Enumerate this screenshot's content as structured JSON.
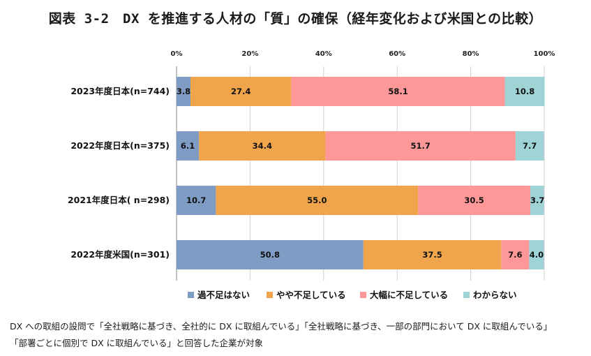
{
  "title": "図表 3-2　DX を推進する人材の「質」の確保（経年変化および米国との比較）",
  "notes": [
    "DX への取組の設問で「全社戦略に基づき、全社的に DX に取組んでいる」「全社戦略に基づき、一部の部門において DX に取組んでいる」",
    "「部署ごとに個別で DX に取組んでいる」と回答した企業が対象"
  ],
  "chart_data": {
    "type": "bar",
    "orientation": "horizontal",
    "stacked": true,
    "xlim": [
      0,
      100
    ],
    "x_ticks": [
      "0%",
      "20%",
      "40%",
      "60%",
      "80%",
      "100%"
    ],
    "x_axis_position": "top",
    "grid": true,
    "legend_position": "bottom",
    "categories": [
      "2023年度日本(n=744)",
      "2022年度日本(n=375)",
      "2021年度日本( n=298)",
      "2022年度米国(n=301)"
    ],
    "series": [
      {
        "name": "過不足はない",
        "color": "#7f9cc4",
        "values": [
          3.8,
          6.1,
          10.7,
          50.8
        ]
      },
      {
        "name": "やや不足している",
        "color": "#f0a54c",
        "values": [
          27.4,
          34.4,
          55.0,
          37.5
        ]
      },
      {
        "name": "大幅に不足している",
        "color": "#fe9797",
        "values": [
          58.1,
          51.7,
          30.5,
          7.6
        ]
      },
      {
        "name": "わからない",
        "color": "#9ed4d6",
        "values": [
          10.8,
          7.7,
          3.7,
          4.0
        ]
      }
    ],
    "labels": [
      [
        "3.8",
        "27.4",
        "58.1",
        "10.8"
      ],
      [
        "6.1",
        "34.4",
        "51.7",
        "7.7"
      ],
      [
        "10.7",
        "55.0",
        "30.5",
        "3.7"
      ],
      [
        "50.8",
        "37.5",
        "7.6",
        "4.0"
      ]
    ]
  }
}
